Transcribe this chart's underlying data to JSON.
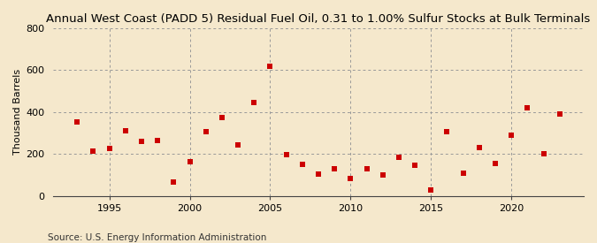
{
  "title": "Annual West Coast (PADD 5) Residual Fuel Oil, 0.31 to 1.00% Sulfur Stocks at Bulk Terminals",
  "ylabel": "Thousand Barrels",
  "source": "Source: U.S. Energy Information Administration",
  "background_color": "#f5e8cc",
  "marker_color": "#cc0000",
  "years": [
    1993,
    1994,
    1995,
    1996,
    1997,
    1998,
    1999,
    2000,
    2001,
    2002,
    2003,
    2004,
    2005,
    2006,
    2007,
    2008,
    2009,
    2010,
    2011,
    2012,
    2013,
    2014,
    2015,
    2016,
    2017,
    2018,
    2019,
    2020,
    2021,
    2022,
    2023
  ],
  "values": [
    355,
    215,
    225,
    310,
    260,
    265,
    65,
    165,
    305,
    375,
    245,
    445,
    620,
    195,
    150,
    105,
    130,
    85,
    130,
    100,
    185,
    145,
    30,
    305,
    110,
    230,
    155,
    290,
    420,
    200,
    390
  ],
  "ylim": [
    0,
    800
  ],
  "yticks": [
    0,
    200,
    400,
    600,
    800
  ],
  "xtick_positions": [
    1995,
    2000,
    2005,
    2010,
    2015,
    2020
  ],
  "xlim": [
    1991.5,
    2024.5
  ],
  "grid_color": "#999999",
  "title_fontsize": 9.5,
  "ylabel_fontsize": 8,
  "tick_fontsize": 8,
  "source_fontsize": 7.5,
  "marker_size": 16
}
